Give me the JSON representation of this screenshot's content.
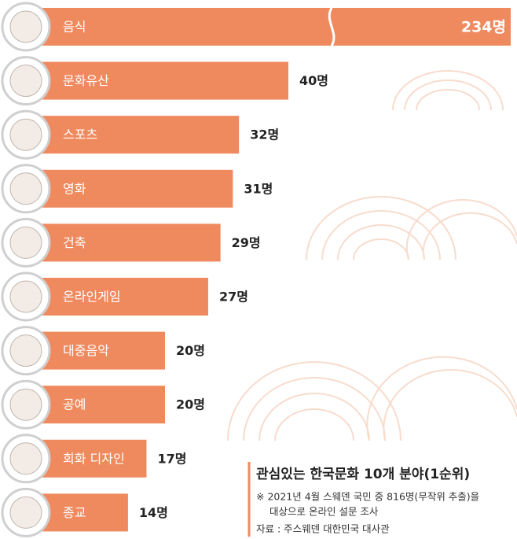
{
  "chart_data": {
    "type": "bar",
    "orientation": "horizontal",
    "title": "관심있는 한국문화 10개 분야(1순위)",
    "notes": [
      "※ 2021년 4월 스웨덴 국민 중 816명(무작위 추출)을",
      "대상으로 온라인 설문 조사"
    ],
    "source": "자료 : 주스웨덴 대한민국 대사관",
    "categories": [
      "음식",
      "문화유산",
      "스포츠",
      "영화",
      "건축",
      "온라인게임",
      "대중음악",
      "공예",
      "회화 디자인",
      "종교"
    ],
    "values": [
      234,
      40,
      32,
      31,
      29,
      27,
      20,
      20,
      17,
      14
    ],
    "value_labels": [
      "234명",
      "40명",
      "32명",
      "31명",
      "29명",
      "27명",
      "20명",
      "20명",
      "17명",
      "14명"
    ],
    "color": "#ef8a5f"
  }
}
